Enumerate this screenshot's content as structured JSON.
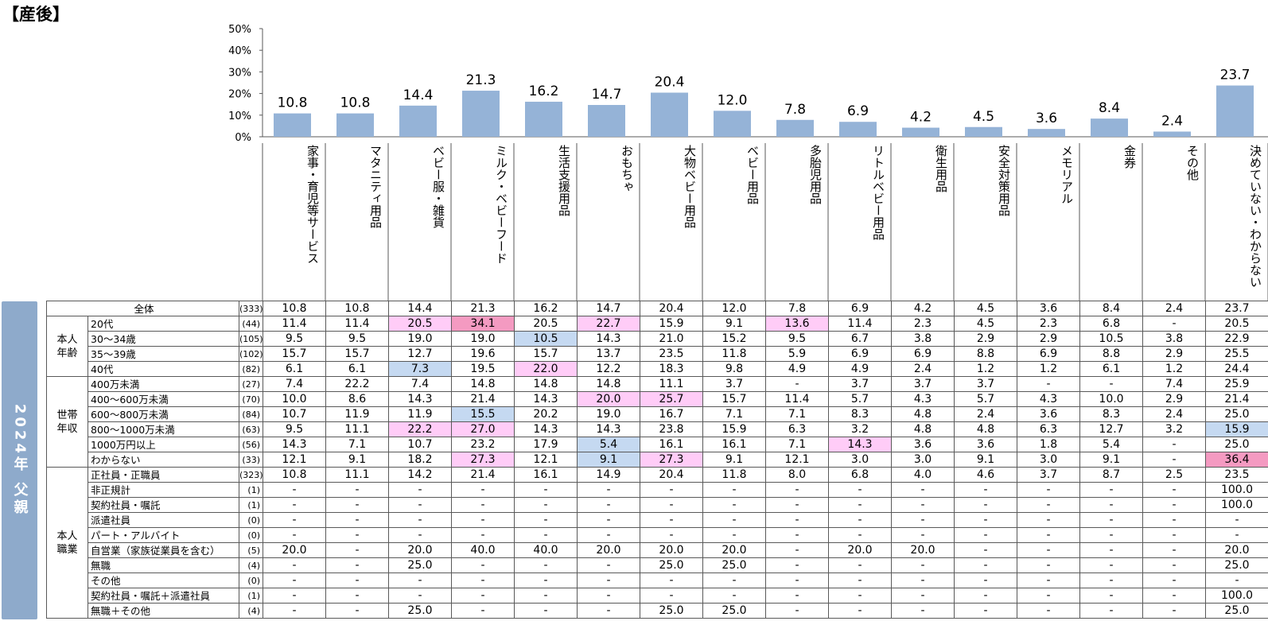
{
  "title": "【産後】",
  "side_label": "2024年 父親",
  "colors": {
    "bar": "#95b3d7",
    "side_band": "#8eaacb",
    "hl_pink": "#ffccf7",
    "hl_rose": "#f49ac1",
    "hl_blue": "#c5d9f1"
  },
  "chart_data": {
    "type": "bar",
    "categories": [
      "家事・育児等サービス",
      "マタニティ用品",
      "ベビー服・雑貨",
      "ミルク・ベビーフード",
      "生活支援用品",
      "おもちゃ",
      "大物ベビー用品",
      "ベビー用品",
      "多胎児用品",
      "リトルベビー用品",
      "衛生用品",
      "安全対策用品",
      "メモリアル",
      "金券",
      "その他",
      "決めていない・わからない"
    ],
    "values": [
      10.8,
      10.8,
      14.4,
      21.3,
      16.2,
      14.7,
      20.4,
      12.0,
      7.8,
      6.9,
      4.2,
      4.5,
      3.6,
      8.4,
      2.4,
      23.7
    ],
    "value_labels": [
      "10.8",
      "10.8",
      "14.4",
      "21.3",
      "16.2",
      "14.7",
      "20.4",
      "12.0",
      "7.8",
      "6.9",
      "4.2",
      "4.5",
      "3.6",
      "8.4",
      "2.4",
      "23.7"
    ],
    "ylim": [
      0,
      50
    ],
    "yticks": [
      "0%",
      "10%",
      "20%",
      "30%",
      "40%",
      "50%"
    ],
    "title": "【産後】"
  },
  "table": {
    "rows": [
      {
        "group": "",
        "label": "全体",
        "n": "(333)",
        "cells": [
          "10.8",
          "10.8",
          "14.4",
          "21.3",
          "16.2",
          "14.7",
          "20.4",
          "12.0",
          "7.8",
          "6.9",
          "4.2",
          "4.5",
          "3.6",
          "8.4",
          "2.4",
          "23.7"
        ],
        "hl": {}
      },
      {
        "group": "本人\n年齢",
        "span": 4,
        "label": "20代",
        "n": "(44)",
        "cells": [
          "11.4",
          "11.4",
          "20.5",
          "34.1",
          "20.5",
          "22.7",
          "15.9",
          "9.1",
          "13.6",
          "11.4",
          "2.3",
          "4.5",
          "2.3",
          "6.8",
          "-",
          "20.5"
        ],
        "hl": {
          "2": "pink",
          "3": "rose",
          "5": "pink",
          "8": "pink"
        }
      },
      {
        "label": "30～34歳",
        "n": "(105)",
        "cells": [
          "9.5",
          "9.5",
          "19.0",
          "19.0",
          "10.5",
          "14.3",
          "21.0",
          "15.2",
          "9.5",
          "6.7",
          "3.8",
          "2.9",
          "2.9",
          "10.5",
          "3.8",
          "22.9"
        ],
        "hl": {
          "4": "blue"
        }
      },
      {
        "label": "35～39歳",
        "n": "(102)",
        "cells": [
          "15.7",
          "15.7",
          "12.7",
          "19.6",
          "15.7",
          "13.7",
          "23.5",
          "11.8",
          "5.9",
          "6.9",
          "6.9",
          "8.8",
          "6.9",
          "8.8",
          "2.9",
          "25.5"
        ],
        "hl": {}
      },
      {
        "label": "40代",
        "n": "(82)",
        "cells": [
          "6.1",
          "6.1",
          "7.3",
          "19.5",
          "22.0",
          "12.2",
          "18.3",
          "9.8",
          "4.9",
          "4.9",
          "2.4",
          "1.2",
          "1.2",
          "6.1",
          "1.2",
          "24.4"
        ],
        "hl": {
          "2": "blue",
          "4": "pink"
        }
      },
      {
        "group": "世帯\n年収",
        "span": 6,
        "label": "400万未満",
        "n": "(27)",
        "cells": [
          "7.4",
          "22.2",
          "7.4",
          "14.8",
          "14.8",
          "14.8",
          "11.1",
          "3.7",
          "-",
          "3.7",
          "3.7",
          "3.7",
          "-",
          "-",
          "7.4",
          "25.9"
        ],
        "hl": {}
      },
      {
        "label": "400～600万未満",
        "n": "(70)",
        "cells": [
          "10.0",
          "8.6",
          "14.3",
          "21.4",
          "14.3",
          "20.0",
          "25.7",
          "15.7",
          "11.4",
          "5.7",
          "4.3",
          "5.7",
          "4.3",
          "10.0",
          "2.9",
          "21.4"
        ],
        "hl": {
          "5": "pink",
          "6": "pink"
        }
      },
      {
        "label": "600～800万未満",
        "n": "(84)",
        "cells": [
          "10.7",
          "11.9",
          "11.9",
          "15.5",
          "20.2",
          "19.0",
          "16.7",
          "7.1",
          "7.1",
          "8.3",
          "4.8",
          "2.4",
          "3.6",
          "8.3",
          "2.4",
          "25.0"
        ],
        "hl": {
          "3": "blue"
        }
      },
      {
        "label": "800～1000万未満",
        "n": "(63)",
        "cells": [
          "9.5",
          "11.1",
          "22.2",
          "27.0",
          "14.3",
          "14.3",
          "23.8",
          "15.9",
          "6.3",
          "3.2",
          "4.8",
          "4.8",
          "6.3",
          "12.7",
          "3.2",
          "15.9"
        ],
        "hl": {
          "2": "pink",
          "3": "pink",
          "15": "blue"
        }
      },
      {
        "label": "1000万円以上",
        "n": "(56)",
        "cells": [
          "14.3",
          "7.1",
          "10.7",
          "23.2",
          "17.9",
          "5.4",
          "16.1",
          "16.1",
          "7.1",
          "14.3",
          "3.6",
          "3.6",
          "1.8",
          "5.4",
          "-",
          "25.0"
        ],
        "hl": {
          "5": "blue",
          "9": "pink"
        }
      },
      {
        "label": "わからない",
        "n": "(33)",
        "cells": [
          "12.1",
          "9.1",
          "18.2",
          "27.3",
          "12.1",
          "9.1",
          "27.3",
          "9.1",
          "12.1",
          "3.0",
          "3.0",
          "9.1",
          "3.0",
          "9.1",
          "-",
          "36.4"
        ],
        "hl": {
          "3": "pink",
          "5": "blue",
          "6": "pink",
          "15": "rose"
        }
      },
      {
        "group": "本人\n職業",
        "span": 10,
        "label": "正社員・正職員",
        "n": "(323)",
        "cells": [
          "10.8",
          "11.1",
          "14.2",
          "21.4",
          "16.1",
          "14.9",
          "20.4",
          "11.8",
          "8.0",
          "6.8",
          "4.0",
          "4.6",
          "3.7",
          "8.7",
          "2.5",
          "23.5"
        ],
        "hl": {}
      },
      {
        "label": "非正規計",
        "n": "(1)",
        "cells": [
          "-",
          "-",
          "-",
          "-",
          "-",
          "-",
          "-",
          "-",
          "-",
          "-",
          "-",
          "-",
          "-",
          "-",
          "-",
          "100.0"
        ],
        "hl": {}
      },
      {
        "label": "契約社員・嘱託",
        "n": "(1)",
        "cells": [
          "-",
          "-",
          "-",
          "-",
          "-",
          "-",
          "-",
          "-",
          "-",
          "-",
          "-",
          "-",
          "-",
          "-",
          "-",
          "100.0"
        ],
        "hl": {}
      },
      {
        "label": "派遣社員",
        "n": "(0)",
        "cells": [
          "-",
          "-",
          "-",
          "-",
          "-",
          "-",
          "-",
          "-",
          "-",
          "-",
          "-",
          "-",
          "-",
          "-",
          "-",
          "-"
        ],
        "hl": {}
      },
      {
        "label": "パート・アルバイト",
        "n": "(0)",
        "cells": [
          "-",
          "-",
          "-",
          "-",
          "-",
          "-",
          "-",
          "-",
          "-",
          "-",
          "-",
          "-",
          "-",
          "-",
          "-",
          "-"
        ],
        "hl": {}
      },
      {
        "label": "自営業（家族従業員を含む）",
        "n": "(5)",
        "cells": [
          "20.0",
          "-",
          "20.0",
          "40.0",
          "40.0",
          "20.0",
          "20.0",
          "20.0",
          "-",
          "20.0",
          "20.0",
          "-",
          "-",
          "-",
          "-",
          "20.0"
        ],
        "hl": {}
      },
      {
        "label": "無職",
        "n": "(4)",
        "cells": [
          "-",
          "-",
          "25.0",
          "-",
          "-",
          "-",
          "25.0",
          "25.0",
          "-",
          "-",
          "-",
          "-",
          "-",
          "-",
          "-",
          "25.0"
        ],
        "hl": {}
      },
      {
        "label": "その他",
        "n": "(0)",
        "cells": [
          "-",
          "-",
          "-",
          "-",
          "-",
          "-",
          "-",
          "-",
          "-",
          "-",
          "-",
          "-",
          "-",
          "-",
          "-",
          "-"
        ],
        "hl": {}
      },
      {
        "label": "契約社員・嘱託＋派遣社員",
        "n": "(1)",
        "cells": [
          "-",
          "-",
          "-",
          "-",
          "-",
          "-",
          "-",
          "-",
          "-",
          "-",
          "-",
          "-",
          "-",
          "-",
          "-",
          "100.0"
        ],
        "hl": {}
      },
      {
        "label": "無職＋その他",
        "n": "(4)",
        "cells": [
          "-",
          "-",
          "25.0",
          "-",
          "-",
          "-",
          "25.0",
          "25.0",
          "-",
          "-",
          "-",
          "-",
          "-",
          "-",
          "-",
          "25.0"
        ],
        "hl": {}
      }
    ]
  }
}
